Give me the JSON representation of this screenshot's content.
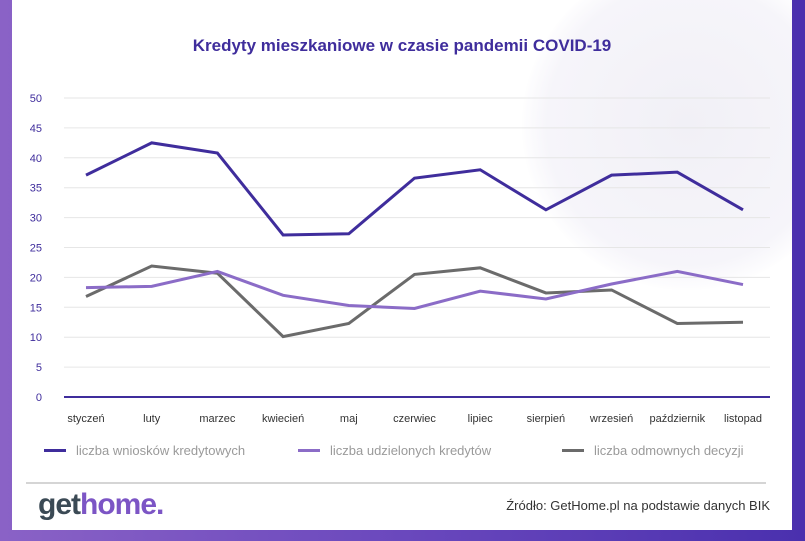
{
  "chart_data": {
    "type": "line",
    "title": "Kredyty mieszkaniowe w czasie pandemii COVID-19",
    "xlabel": "",
    "ylabel": "",
    "categories": [
      "styczeń",
      "luty",
      "marzec",
      "kwiecień",
      "maj",
      "czerwiec",
      "lipiec",
      "sierpień",
      "wrzesień",
      "październik",
      "listopad"
    ],
    "ylim": [
      0,
      50
    ],
    "yticks": [
      "0",
      "5",
      "10",
      "15",
      "20",
      "25",
      "30",
      "35",
      "40",
      "45",
      "50"
    ],
    "grid": true,
    "legend_position": "bottom",
    "series": [
      {
        "name": "liczba wniosków kredytowych",
        "color": "#3f2d9c",
        "values": [
          37.1,
          42.5,
          40.8,
          27.1,
          27.3,
          36.6,
          38.0,
          31.3,
          37.1,
          37.6,
          31.3
        ]
      },
      {
        "name": "liczba udzielonych kredytów",
        "color": "#8b6cc7",
        "values": [
          18.3,
          18.5,
          21.0,
          17.0,
          15.3,
          14.8,
          17.7,
          16.4,
          18.9,
          21.0,
          18.8
        ]
      },
      {
        "name": "liczba odmownych decyzji",
        "color": "#6b6b6b",
        "values": [
          16.8,
          21.9,
          20.7,
          10.1,
          12.3,
          20.5,
          21.6,
          17.4,
          17.9,
          12.3,
          12.5
        ]
      }
    ]
  },
  "footer": {
    "logo_part1": "get",
    "logo_part2": "home.",
    "source": "Źródło: GetHome.pl na podstawie danych BIK"
  }
}
